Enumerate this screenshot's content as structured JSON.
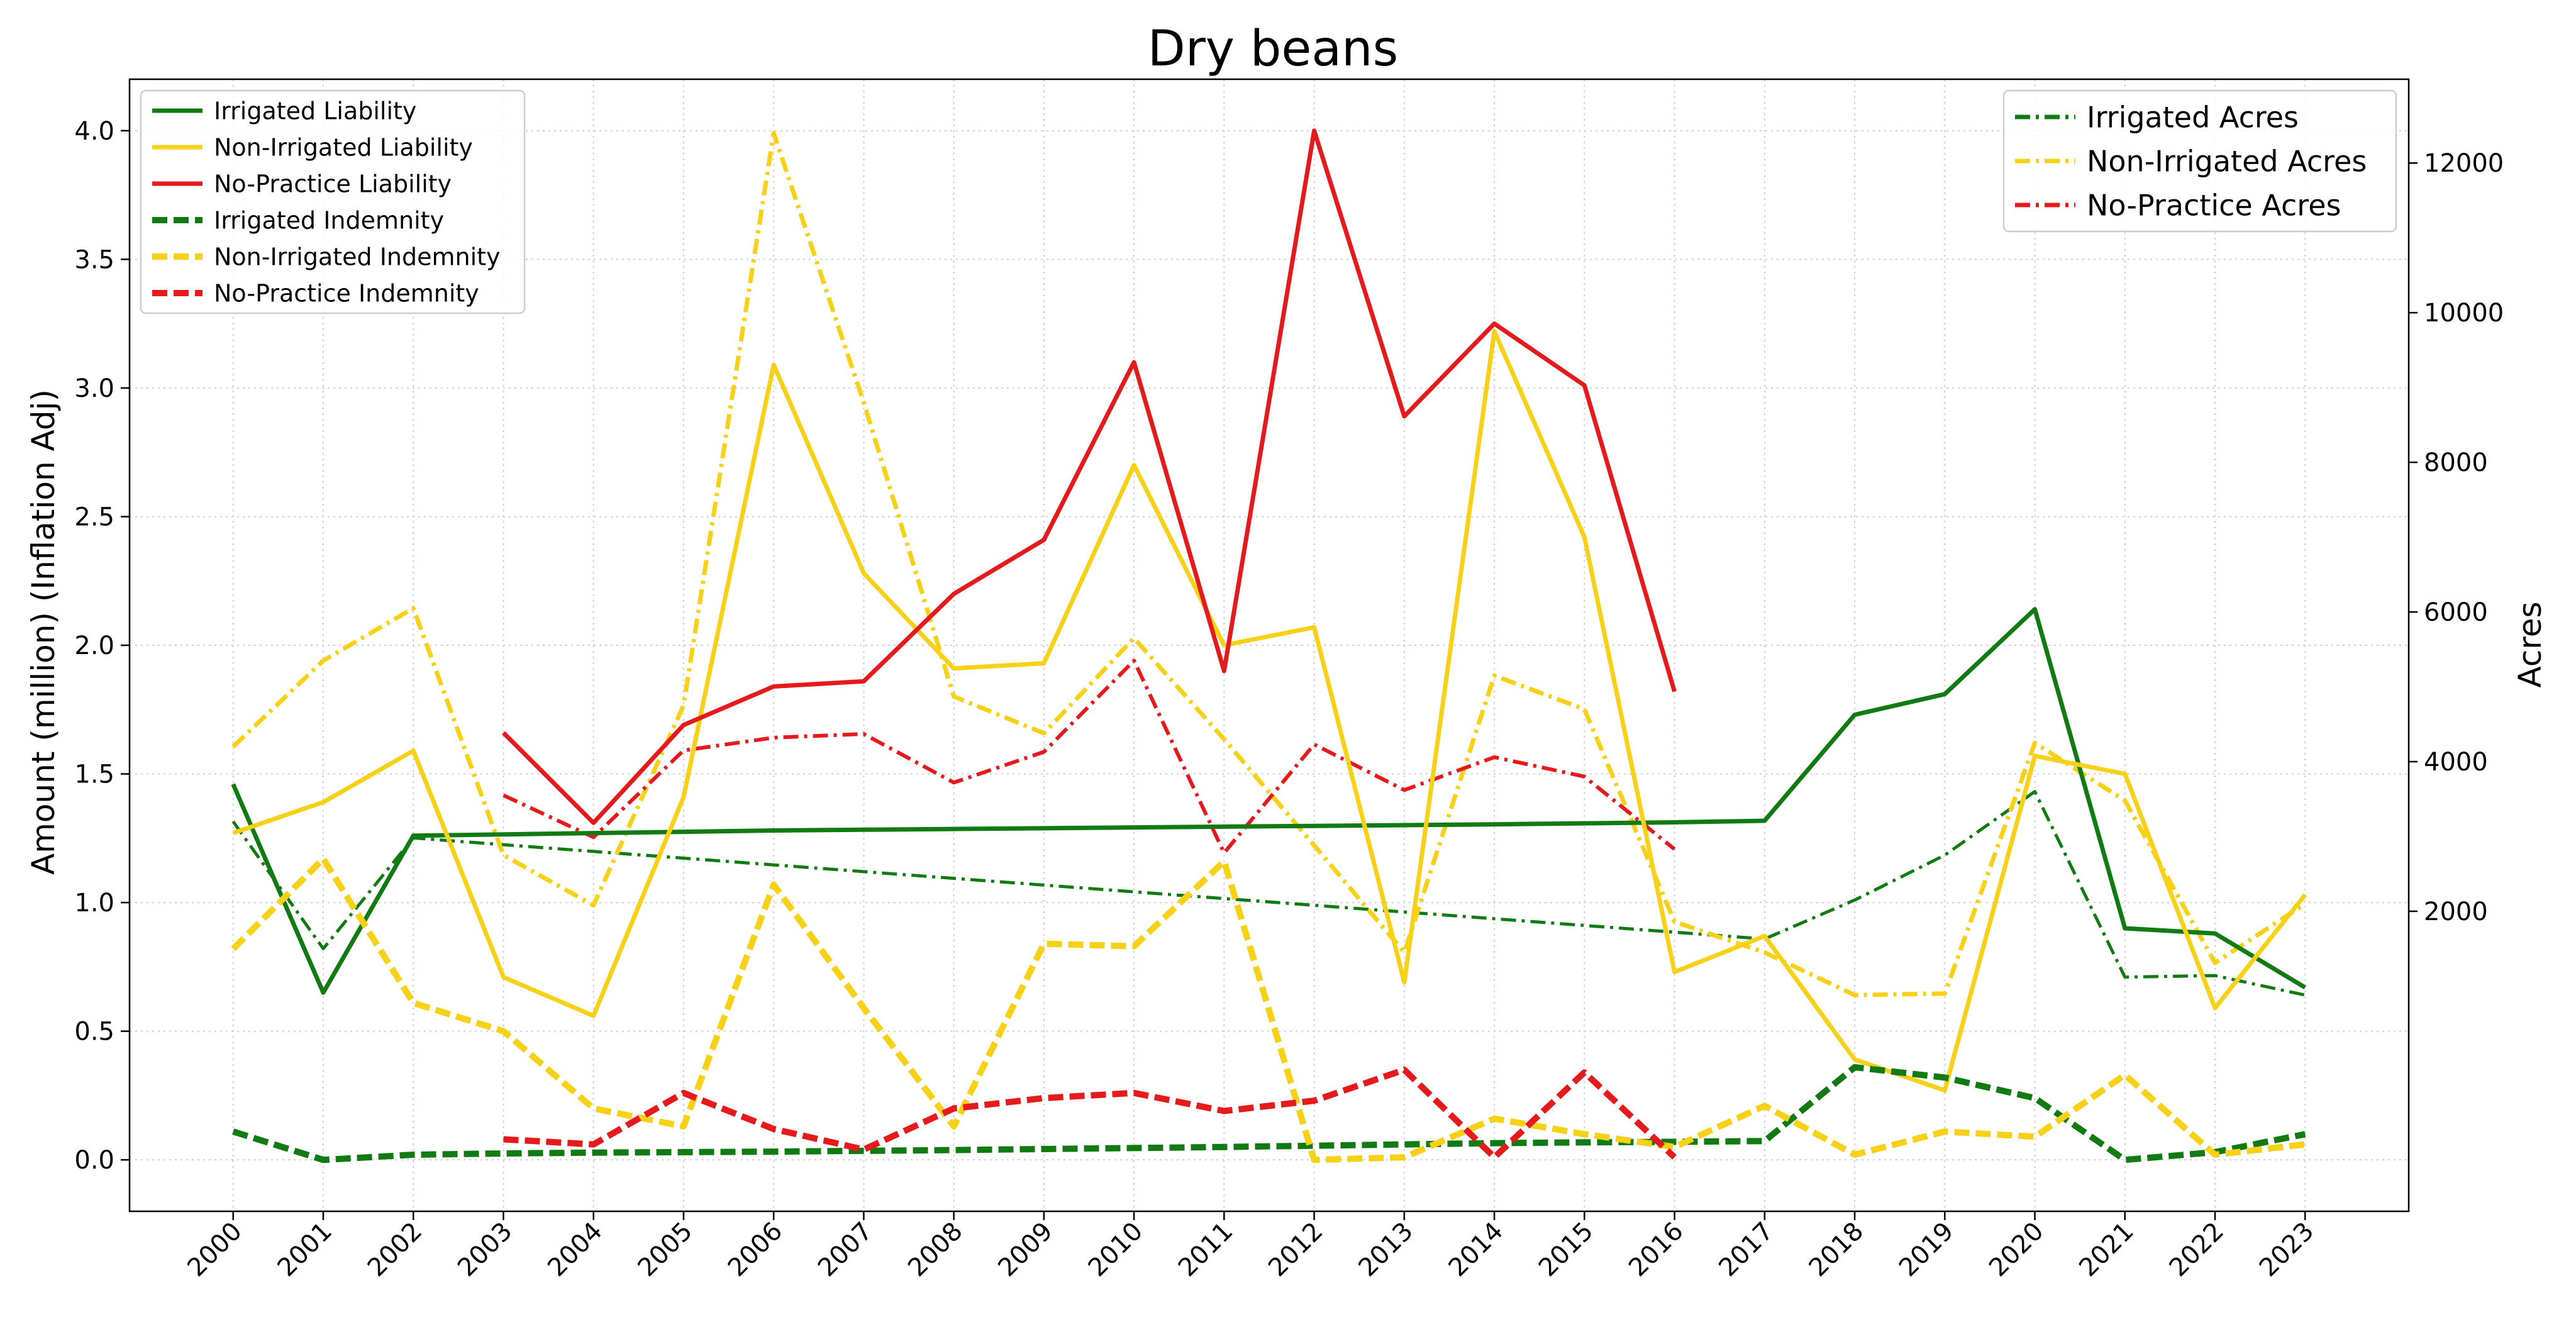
{
  "chart_data": {
    "type": "line",
    "title": "Dry beans",
    "xlabel": "",
    "ylabel": "Amount (million) (Inflation Adj)",
    "y2label": "Acres",
    "grid": true,
    "ylim": [
      -0.2,
      4.2
    ],
    "y2lim": [
      -2010,
      13120
    ],
    "xlim": [
      1998.85,
      2024.15
    ],
    "categories": [
      "2000",
      "2001",
      "2002",
      "2003",
      "2004",
      "2005",
      "2006",
      "2007",
      "2008",
      "2009",
      "2010",
      "2011",
      "2012",
      "2013",
      "2014",
      "2015",
      "2016",
      "2017",
      "2018",
      "2019",
      "2020",
      "2021",
      "2022",
      "2023"
    ],
    "yticks": [
      "0.0",
      "0.5",
      "1.0",
      "1.5",
      "2.0",
      "2.5",
      "3.0",
      "3.5",
      "4.0"
    ],
    "y2ticks": [
      "2000",
      "4000",
      "6000",
      "8000",
      "10000",
      "12000"
    ],
    "legend_left_position": "upper-left",
    "legend_right_position": "upper-right",
    "colors": {
      "green": "#127a12",
      "yellow": "#f7d117",
      "red": "#e41a1c"
    },
    "series_left": [
      {
        "name": "Irrigated Liability",
        "color": "#127a12",
        "style": "solid",
        "values": [
          1.46,
          0.65,
          1.26,
          1.265,
          1.27,
          1.275,
          1.28,
          1.283,
          1.286,
          1.289,
          1.292,
          1.295,
          1.298,
          1.301,
          1.304,
          1.308,
          1.312,
          1.318,
          1.73,
          1.81,
          2.14,
          0.9,
          0.88,
          0.67
        ]
      },
      {
        "name": "Non-Irrigated Liability",
        "color": "#f7d117",
        "style": "solid",
        "values": [
          1.27,
          1.39,
          1.59,
          0.71,
          0.56,
          1.41,
          3.09,
          2.28,
          1.91,
          1.93,
          2.7,
          2.0,
          2.07,
          0.69,
          3.22,
          2.42,
          0.73,
          0.87,
          0.39,
          0.27,
          1.57,
          1.5,
          0.59,
          1.03
        ]
      },
      {
        "name": "No-Practice Liability",
        "color": "#e41a1c",
        "style": "solid",
        "values": [
          null,
          null,
          null,
          1.66,
          1.31,
          1.69,
          1.84,
          1.86,
          2.2,
          2.41,
          3.1,
          1.9,
          4.0,
          2.89,
          3.25,
          3.01,
          1.82,
          null,
          null,
          null,
          null,
          null,
          null,
          null
        ]
      },
      {
        "name": "Irrigated Indemnity",
        "color": "#127a12",
        "style": "dashed",
        "values": [
          0.11,
          0.0,
          0.02,
          0.025,
          0.028,
          0.03,
          0.032,
          0.035,
          0.038,
          0.042,
          0.046,
          0.05,
          0.055,
          0.06,
          0.065,
          0.068,
          0.07,
          0.073,
          0.36,
          0.32,
          0.24,
          0.0,
          0.03,
          0.1
        ]
      },
      {
        "name": "Non-Irrigated Indemnity",
        "color": "#f7d117",
        "style": "dashed",
        "values": [
          0.82,
          1.17,
          0.61,
          0.5,
          0.2,
          0.13,
          1.07,
          0.59,
          0.13,
          0.84,
          0.83,
          1.16,
          0.0,
          0.01,
          0.16,
          0.1,
          0.05,
          0.21,
          0.02,
          0.11,
          0.09,
          0.33,
          0.02,
          0.06
        ]
      },
      {
        "name": "No-Practice Indemnity",
        "color": "#e41a1c",
        "style": "dashed",
        "values": [
          null,
          null,
          null,
          0.08,
          0.06,
          0.26,
          0.12,
          0.04,
          0.2,
          0.24,
          0.26,
          0.19,
          0.23,
          0.35,
          0.01,
          0.34,
          0.01,
          null,
          null,
          null,
          null,
          null,
          null,
          null
        ]
      }
    ],
    "series_right": [
      {
        "name": "Irrigated Acres",
        "color": "#127a12",
        "style": "dashdot",
        "width": 5,
        "values": [
          3200,
          1500,
          2980,
          2890,
          2800,
          2710,
          2620,
          2530,
          2440,
          2350,
          2260,
          2170,
          2080,
          1990,
          1900,
          1810,
          1720,
          1630,
          2150,
          2750,
          3600,
          1120,
          1140,
          880
        ]
      },
      {
        "name": "Non-Irrigated Acres",
        "color": "#f7d117",
        "style": "dashdot",
        "width": 7,
        "values": [
          4200,
          5350,
          6050,
          2750,
          2080,
          4750,
          12400,
          8800,
          4870,
          4380,
          5650,
          4300,
          2880,
          1450,
          5150,
          4700,
          1860,
          1450,
          880,
          900,
          4250,
          3480,
          1310,
          2100
        ]
      },
      {
        "name": "No-Practice Acres",
        "color": "#e41a1c",
        "style": "dashdot",
        "width": 6,
        "values": [
          null,
          null,
          null,
          3550,
          2990,
          4150,
          4320,
          4370,
          3720,
          4130,
          5350,
          2780,
          4230,
          3620,
          4060,
          3800,
          2830,
          null,
          null,
          null,
          null,
          null,
          null,
          null
        ]
      }
    ]
  }
}
